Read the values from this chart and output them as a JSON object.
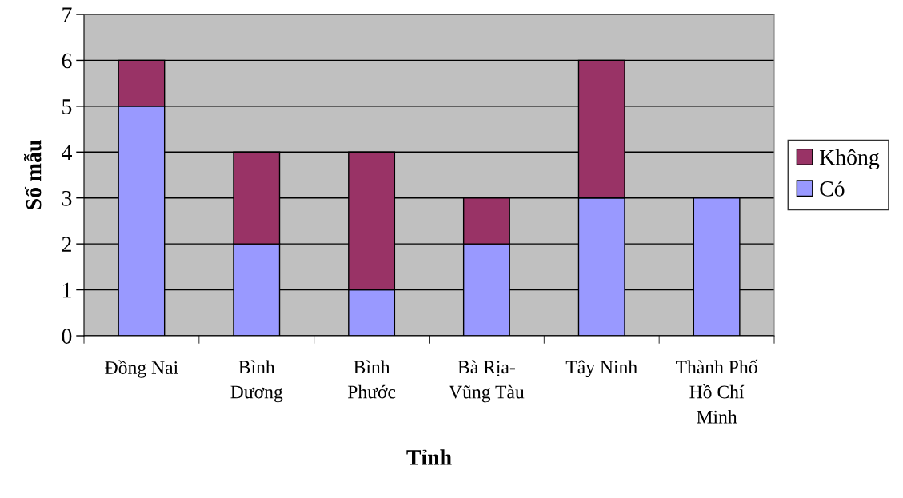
{
  "chart_data": {
    "type": "bar",
    "stacked": true,
    "xlabel": "Tỉnh",
    "ylabel": "Số mẫu",
    "categories": [
      "Đồng Nai",
      "Bình\nDương",
      "Bình\nPhước",
      "Bà Rịa-\nVũng Tàu",
      "Tây Ninh",
      "Thành Phố\nHồ Chí\nMinh"
    ],
    "series": [
      {
        "name": "Có",
        "color": "#9999ff",
        "values": [
          5,
          2,
          1,
          2,
          3,
          3
        ]
      },
      {
        "name": "Không",
        "color": "#993366",
        "values": [
          1,
          2,
          3,
          1,
          3,
          null
        ]
      }
    ],
    "ylim": [
      0,
      7
    ],
    "yticks": [
      0,
      1,
      2,
      3,
      4,
      5,
      6,
      7
    ],
    "grid": "y",
    "legend": "right"
  }
}
